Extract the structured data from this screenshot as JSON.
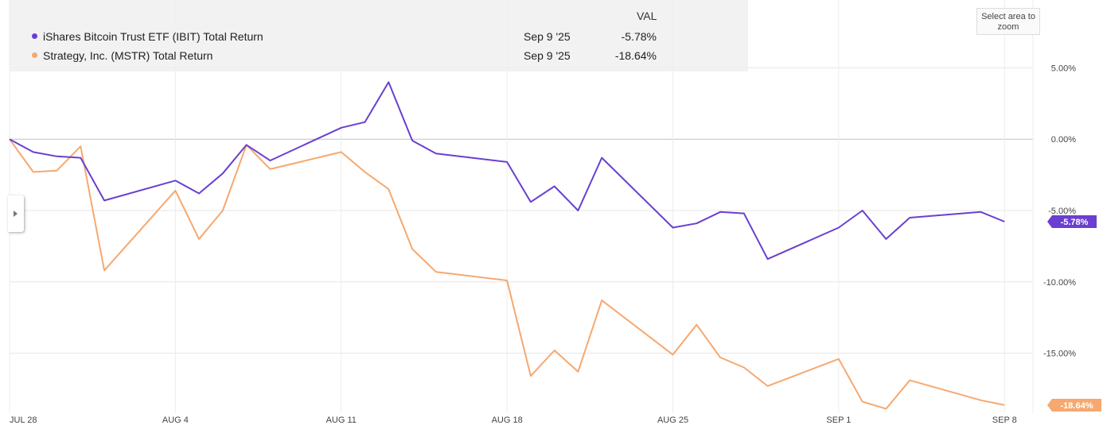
{
  "legend": {
    "header": "VAL",
    "rows": [
      {
        "name": "iShares Bitcoin Trust ETF (IBIT) Total Return",
        "date": "Sep 9 '25",
        "value": "-5.78%",
        "color": "#6a3fd1"
      },
      {
        "name": "Strategy, Inc. (MSTR) Total Return",
        "date": "Sep 9 '25",
        "value": "-18.64%",
        "color": "#f6a86f"
      }
    ]
  },
  "zoom_hint": "Select area to zoom",
  "chart_data": {
    "type": "line",
    "y_ticks": [
      5,
      0,
      -5,
      -10,
      -15
    ],
    "y_tick_labels": [
      "5.00%",
      "0.00%",
      "-5.00%",
      "-10.00%",
      "-15.00%"
    ],
    "ylim": [
      -19.2,
      9.2
    ],
    "xlim": [
      0,
      43.2
    ],
    "x_ticks": [
      0,
      7,
      14,
      21,
      28,
      35,
      42
    ],
    "x_tick_labels": [
      "JUL 28",
      "AUG 4",
      "AUG 11",
      "AUG 18",
      "AUG 25",
      "SEP 1",
      "SEP 8"
    ],
    "grid": true,
    "series": [
      {
        "name": "iShares Bitcoin Trust ETF (IBIT) Total Return",
        "color": "#6a3fd1",
        "end_label": "-5.78%",
        "points": [
          [
            0,
            0.0
          ],
          [
            1,
            -0.9
          ],
          [
            2,
            -1.2
          ],
          [
            3,
            -1.3
          ],
          [
            4,
            -4.3
          ],
          [
            7,
            -2.9
          ],
          [
            8,
            -3.8
          ],
          [
            9,
            -2.4
          ],
          [
            10,
            -0.4
          ],
          [
            11,
            -1.5
          ],
          [
            14,
            0.8
          ],
          [
            15,
            1.2
          ],
          [
            16,
            4.0
          ],
          [
            17,
            -0.1
          ],
          [
            18,
            -1.0
          ],
          [
            21,
            -1.6
          ],
          [
            22,
            -4.4
          ],
          [
            23,
            -3.3
          ],
          [
            24,
            -5.0
          ],
          [
            25,
            -1.3
          ],
          [
            28,
            -6.2
          ],
          [
            29,
            -5.9
          ],
          [
            30,
            -5.1
          ],
          [
            31,
            -5.2
          ],
          [
            32,
            -8.4
          ],
          [
            35,
            -6.2
          ],
          [
            36,
            -5.0
          ],
          [
            37,
            -7.0
          ],
          [
            38,
            -5.5
          ],
          [
            41,
            -5.1
          ],
          [
            42,
            -5.78
          ]
        ]
      },
      {
        "name": "Strategy, Inc. (MSTR) Total Return",
        "color": "#f6a86f",
        "end_label": "-18.64%",
        "points": [
          [
            0,
            0.0
          ],
          [
            1,
            -2.3
          ],
          [
            2,
            -2.2
          ],
          [
            3,
            -0.5
          ],
          [
            4,
            -9.2
          ],
          [
            7,
            -3.6
          ],
          [
            8,
            -7.0
          ],
          [
            9,
            -5.0
          ],
          [
            10,
            -0.4
          ],
          [
            11,
            -2.1
          ],
          [
            14,
            -0.9
          ],
          [
            15,
            -2.3
          ],
          [
            16,
            -3.5
          ],
          [
            17,
            -7.7
          ],
          [
            18,
            -9.3
          ],
          [
            21,
            -9.9
          ],
          [
            22,
            -16.6
          ],
          [
            23,
            -14.8
          ],
          [
            24,
            -16.3
          ],
          [
            25,
            -11.3
          ],
          [
            28,
            -15.1
          ],
          [
            29,
            -13.0
          ],
          [
            30,
            -15.3
          ],
          [
            31,
            -16.0
          ],
          [
            32,
            -17.3
          ],
          [
            35,
            -15.4
          ],
          [
            36,
            -18.4
          ],
          [
            37,
            -18.9
          ],
          [
            38,
            -16.9
          ],
          [
            41,
            -18.3
          ],
          [
            42,
            -18.64
          ]
        ]
      }
    ]
  }
}
